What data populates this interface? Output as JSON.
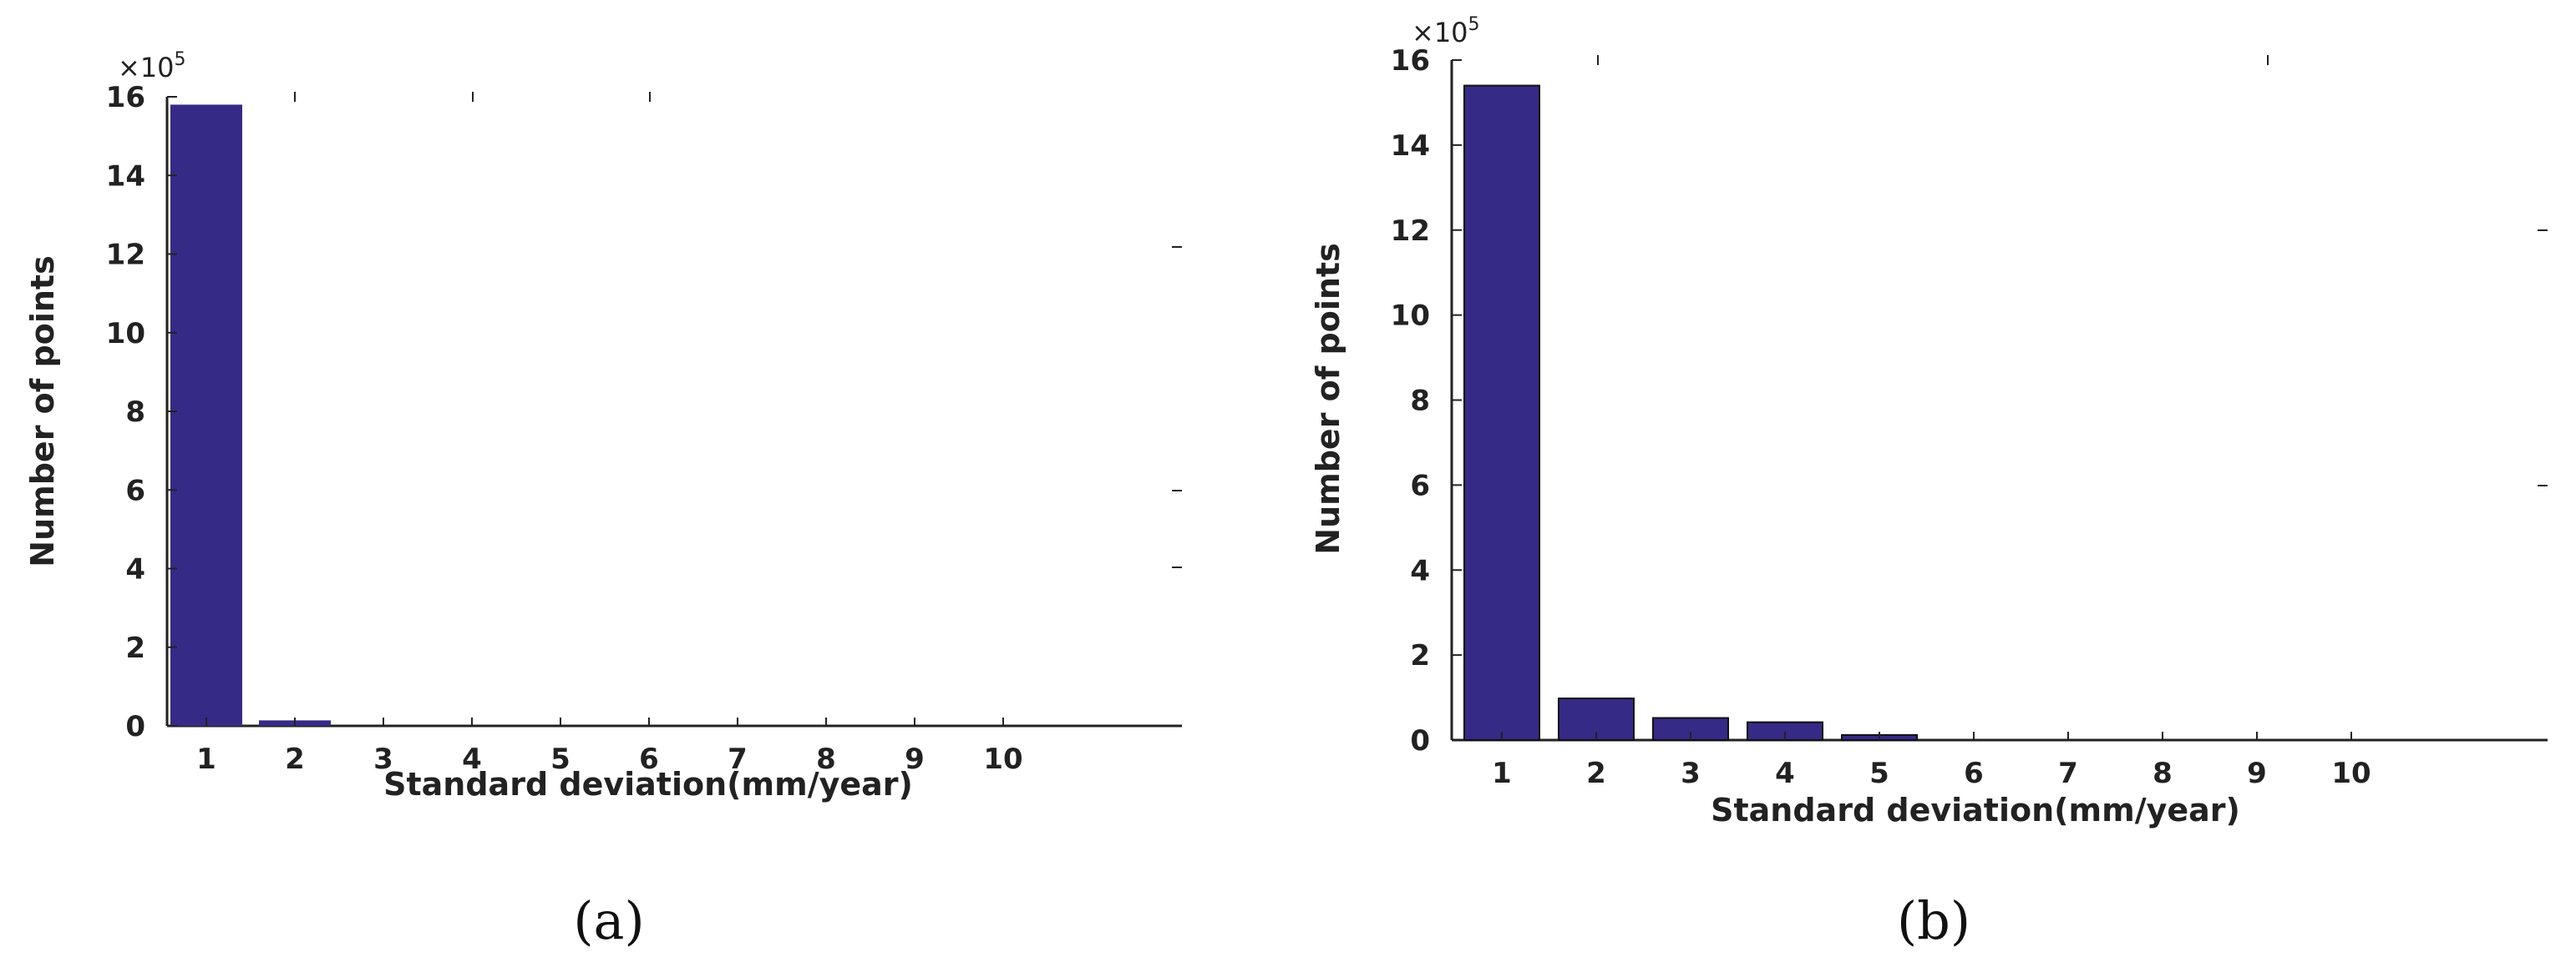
{
  "colors": {
    "bar": "#352a86",
    "axis": "#222222",
    "text": "#222222"
  },
  "chart_data": [
    {
      "type": "bar",
      "panel": "a",
      "caption": "(a)",
      "title": "",
      "xlabel": "Standard deviation(mm/year)",
      "ylabel": "Number of points",
      "y_multiplier": "×10",
      "y_multiplier_exp": "5",
      "categories": [
        "1",
        "2",
        "3",
        "4",
        "5",
        "6",
        "7",
        "8",
        "9",
        "10"
      ],
      "values": [
        15.8,
        0.14,
        0,
        0,
        0,
        0,
        0,
        0,
        0,
        0
      ],
      "ylim": [
        0,
        16
      ],
      "yticks": [
        0,
        2,
        4,
        6,
        8,
        10,
        12,
        14,
        16
      ],
      "grid": false,
      "legend": "none"
    },
    {
      "type": "bar",
      "panel": "b",
      "caption": "(b)",
      "title": "",
      "xlabel": "Standard deviation(mm/year)",
      "ylabel": "Number of points",
      "y_multiplier": "×10",
      "y_multiplier_exp": "5",
      "categories": [
        "1",
        "2",
        "3",
        "4",
        "5",
        "6",
        "7",
        "8",
        "9",
        "10"
      ],
      "values": [
        15.4,
        0.98,
        0.52,
        0.42,
        0.12,
        0,
        0,
        0,
        0,
        0
      ],
      "ylim": [
        0,
        16
      ],
      "yticks": [
        0,
        2,
        4,
        6,
        8,
        10,
        12,
        14,
        16
      ],
      "grid": false,
      "legend": "none"
    }
  ]
}
